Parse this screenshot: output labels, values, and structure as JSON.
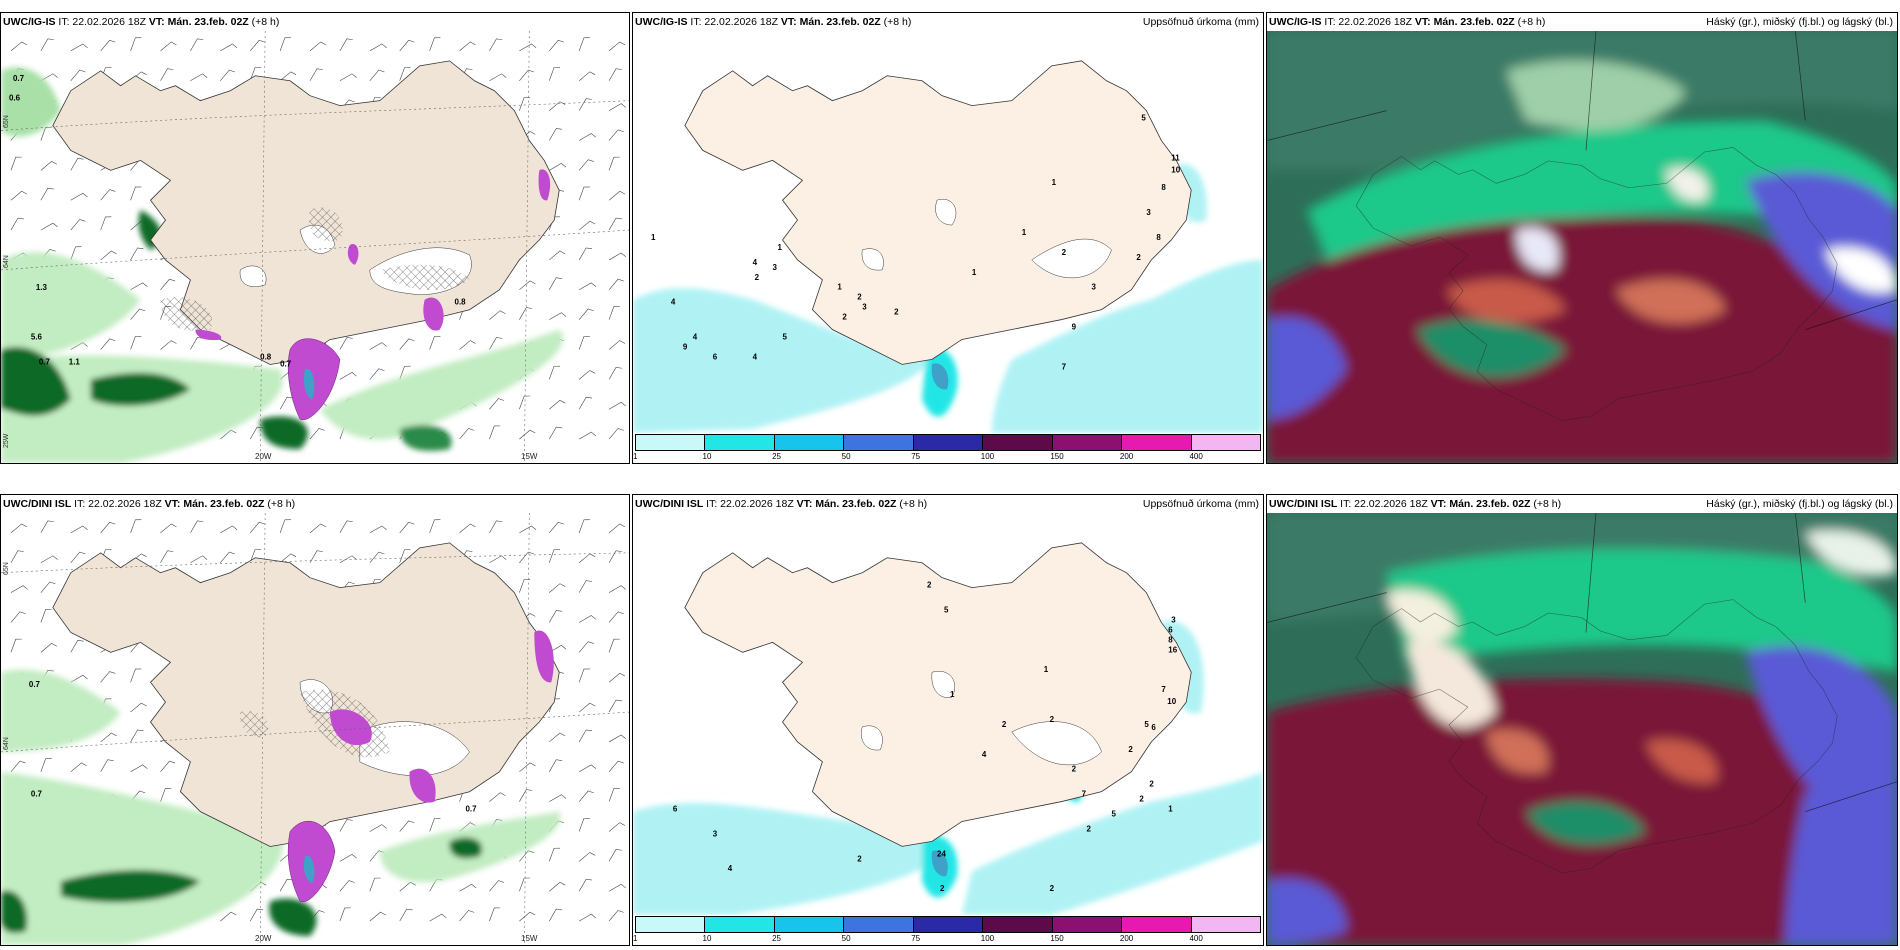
{
  "panels": {
    "top_left": {
      "model": "UWC/IG-IS",
      "it": "IT: 22.02.2026 18Z",
      "vt_label": "VT:",
      "vt": "Mán. 23.feb. 02Z",
      "lead": "(+8 h)",
      "right_title": ""
    },
    "top_mid": {
      "model": "UWC/IG-IS",
      "it": "IT: 22.02.2026 18Z",
      "vt_label": "VT:",
      "vt": "Mán. 23.feb. 02Z",
      "lead": "(+8 h)",
      "right_title": "Uppsöfnuð úrkoma (mm)"
    },
    "top_right": {
      "model": "UWC/IG-IS",
      "it": "IT: 22.02.2026 18Z",
      "vt_label": "VT:",
      "vt": "Mán. 23.feb. 02Z",
      "lead": "(+8 h)",
      "right_title": "Háský (gr.), miðský (fj.bl.) og lágský (bl.)"
    },
    "bot_left": {
      "model": "UWC/DINI ISL",
      "it": "IT: 22.02.2026 18Z",
      "vt_label": "VT:",
      "vt": "Mán. 23.feb. 02Z",
      "lead": "(+8 h)",
      "right_title": ""
    },
    "bot_mid": {
      "model": "UWC/DINI ISL",
      "it": "IT: 22.02.2026 18Z",
      "vt_label": "VT:",
      "vt": "Mán. 23.feb. 02Z",
      "lead": "(+8 h)",
      "right_title": "Uppsöfnuð úrkoma (mm)"
    },
    "bot_right": {
      "model": "UWC/DINI ISL",
      "it": "IT: 22.02.2026 18Z",
      "vt_label": "VT:",
      "vt": "Mán. 23.feb. 02Z",
      "lead": "(+8 h)",
      "right_title": "Háský (gr.), miðský (fj.bl.) og lágský (bl.)"
    }
  },
  "grid_labels": {
    "lon_20w": "20W",
    "lon_15w": "15W",
    "lat_65n": "65N",
    "lat_64n": "64N",
    "lon_25w": "25W"
  },
  "colorbar": {
    "ticks": [
      "1",
      "10",
      "25",
      "50",
      "75",
      "100",
      "150",
      "200",
      "400"
    ],
    "colors": [
      "#c8f8f8",
      "#22e6e6",
      "#18c4ec",
      "#3e74e0",
      "#2a2aa8",
      "#5c0a4a",
      "#8c1070",
      "#e61ab0",
      "#f2b6f2"
    ]
  },
  "colors": {
    "land": "#f0e4d6",
    "mid_land": "#fcf0e4",
    "precip_light": "#b0f2f4",
    "green_light": "#c2ecc2",
    "green_dark": "#0c6a28",
    "magenta": "#c04ad0",
    "cloud_maroon": "#7a1438",
    "cloud_teal": "#2e6e58",
    "cloud_green": "#1ec88a",
    "cloud_blue": "#5a5ad6"
  },
  "tl_labels": [
    "0.7",
    "0.6",
    "1.3",
    "5.6",
    "1.1",
    "0.7",
    "0.8",
    "0.7",
    "0.8"
  ],
  "tm_labels": [
    "1",
    "4",
    "3",
    "1",
    "2",
    "1",
    "2",
    "3",
    "2",
    "2",
    "4",
    "9",
    "5",
    "6",
    "4",
    "4",
    "1",
    "1",
    "2",
    "1",
    "5",
    "11",
    "10",
    "8",
    "3",
    "8",
    "2",
    "3",
    "9",
    "7"
  ],
  "bl_labels": [
    "0.7",
    "0.7",
    "0.7"
  ],
  "bm_labels": [
    "2",
    "5",
    "3",
    "6",
    "8",
    "16",
    "1",
    "1",
    "2",
    "7",
    "10",
    "5",
    "6",
    "2",
    "2",
    "2",
    "2",
    "1",
    "2",
    "4",
    "7",
    "6",
    "3",
    "2",
    "4",
    "5",
    "2",
    "2",
    "24",
    "2"
  ]
}
